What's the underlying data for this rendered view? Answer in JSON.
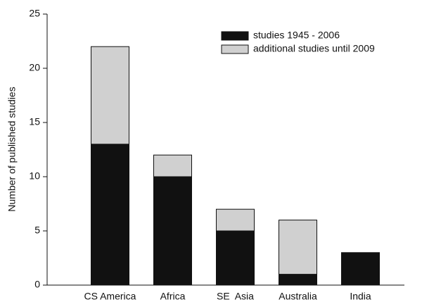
{
  "chart_data": {
    "type": "stacked-bar",
    "y_label": "Number of published studies",
    "categories": [
      "CS America",
      "Africa",
      "SE  Asia",
      "Australia",
      "India"
    ],
    "series": [
      {
        "name": "studies 1945 - 2006",
        "color": "#111111",
        "values": [
          13,
          10,
          5,
          1,
          3
        ]
      },
      {
        "name": "additional studies until 2009",
        "color": "#d0d0d0",
        "values": [
          9,
          2,
          2,
          5,
          0
        ]
      }
    ],
    "ylim": [
      0,
      25
    ],
    "yticks": [
      0,
      5,
      10,
      15,
      20,
      25
    ],
    "legend": "upper right"
  }
}
